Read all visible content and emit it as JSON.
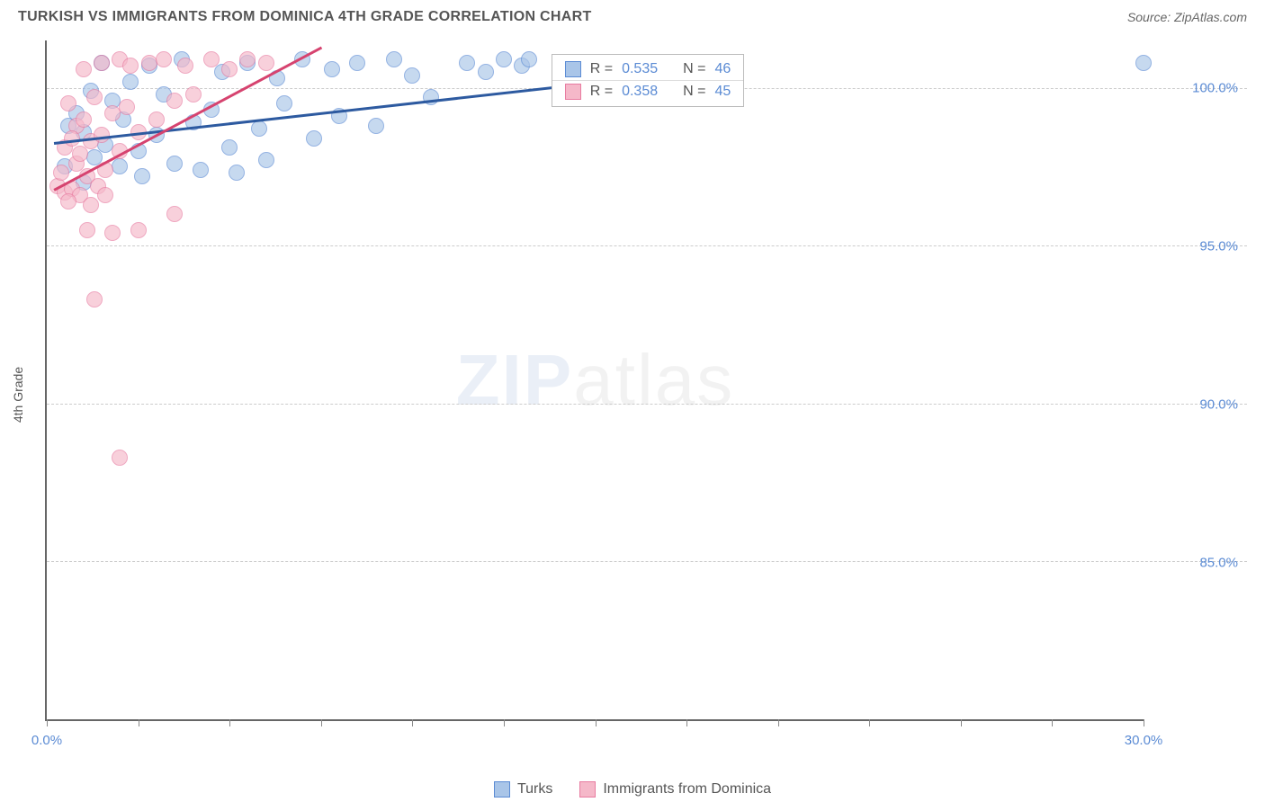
{
  "header": {
    "title": "TURKISH VS IMMIGRANTS FROM DOMINICA 4TH GRADE CORRELATION CHART",
    "source": "Source: ZipAtlas.com"
  },
  "chart": {
    "type": "scatter",
    "ylabel": "4th Grade",
    "xlim": [
      0,
      30
    ],
    "ylim": [
      80,
      101.5
    ],
    "xticks": [
      0,
      2.5,
      5,
      7.5,
      10,
      12.5,
      15,
      17.5,
      20,
      22.5,
      25,
      27.5,
      30
    ],
    "xtick_labels": {
      "0": "0.0%",
      "30": "30.0%"
    },
    "yticks": [
      85,
      90,
      95,
      100
    ],
    "ytick_labels": [
      "85.0%",
      "90.0%",
      "95.0%",
      "100.0%"
    ],
    "background_color": "#ffffff",
    "grid_color": "#cccccc",
    "axis_color": "#666666",
    "tick_color": "#5b8bd4",
    "marker_radius": 9,
    "marker_opacity": 0.65,
    "series": [
      {
        "name": "Turks",
        "fill": "#a9c5e8",
        "stroke": "#5b8bd4",
        "trend": {
          "x1": 0.2,
          "y1": 98.3,
          "x2": 18,
          "y2": 100.6,
          "color": "#2d5aa0"
        },
        "stats": {
          "R": "0.535",
          "N": "46"
        },
        "points": [
          [
            0.5,
            97.5
          ],
          [
            0.6,
            98.8
          ],
          [
            0.8,
            99.2
          ],
          [
            1.0,
            97.0
          ],
          [
            1.0,
            98.6
          ],
          [
            1.2,
            99.9
          ],
          [
            1.3,
            97.8
          ],
          [
            1.5,
            100.8
          ],
          [
            1.6,
            98.2
          ],
          [
            1.8,
            99.6
          ],
          [
            2.0,
            97.5
          ],
          [
            2.1,
            99.0
          ],
          [
            2.3,
            100.2
          ],
          [
            2.5,
            98.0
          ],
          [
            2.6,
            97.2
          ],
          [
            2.8,
            100.7
          ],
          [
            3.0,
            98.5
          ],
          [
            3.2,
            99.8
          ],
          [
            3.5,
            97.6
          ],
          [
            3.7,
            100.9
          ],
          [
            4.0,
            98.9
          ],
          [
            4.2,
            97.4
          ],
          [
            4.5,
            99.3
          ],
          [
            4.8,
            100.5
          ],
          [
            5.0,
            98.1
          ],
          [
            5.2,
            97.3
          ],
          [
            5.5,
            100.8
          ],
          [
            5.8,
            98.7
          ],
          [
            6.0,
            97.7
          ],
          [
            6.3,
            100.3
          ],
          [
            6.5,
            99.5
          ],
          [
            7.0,
            100.9
          ],
          [
            7.3,
            98.4
          ],
          [
            7.8,
            100.6
          ],
          [
            8.0,
            99.1
          ],
          [
            8.5,
            100.8
          ],
          [
            9.0,
            98.8
          ],
          [
            9.5,
            100.9
          ],
          [
            10.0,
            100.4
          ],
          [
            10.5,
            99.7
          ],
          [
            11.5,
            100.8
          ],
          [
            12.0,
            100.5
          ],
          [
            12.5,
            100.9
          ],
          [
            13.0,
            100.7
          ],
          [
            13.2,
            100.9
          ],
          [
            30.0,
            100.8
          ]
        ]
      },
      {
        "name": "Immigrants from Dominica",
        "fill": "#f5b8c9",
        "stroke": "#e87ba0",
        "trend": {
          "x1": 0.2,
          "y1": 96.8,
          "x2": 7.5,
          "y2": 101.3,
          "color": "#d6436f"
        },
        "stats": {
          "R": "0.358",
          "N": "45"
        },
        "points": [
          [
            0.3,
            96.9
          ],
          [
            0.4,
            97.3
          ],
          [
            0.5,
            96.7
          ],
          [
            0.5,
            98.1
          ],
          [
            0.6,
            99.5
          ],
          [
            0.7,
            96.8
          ],
          [
            0.8,
            97.6
          ],
          [
            0.8,
            98.8
          ],
          [
            0.9,
            96.6
          ],
          [
            1.0,
            99.0
          ],
          [
            1.0,
            100.6
          ],
          [
            1.1,
            97.2
          ],
          [
            1.2,
            98.3
          ],
          [
            1.3,
            99.7
          ],
          [
            1.4,
            96.9
          ],
          [
            1.5,
            100.8
          ],
          [
            1.5,
            98.5
          ],
          [
            1.6,
            97.4
          ],
          [
            1.8,
            99.2
          ],
          [
            1.8,
            95.4
          ],
          [
            2.0,
            100.9
          ],
          [
            2.0,
            98.0
          ],
          [
            2.2,
            99.4
          ],
          [
            2.3,
            100.7
          ],
          [
            2.5,
            98.6
          ],
          [
            2.5,
            95.5
          ],
          [
            2.8,
            100.8
          ],
          [
            3.0,
            99.0
          ],
          [
            3.2,
            100.9
          ],
          [
            3.5,
            99.6
          ],
          [
            3.5,
            96.0
          ],
          [
            3.8,
            100.7
          ],
          [
            4.0,
            99.8
          ],
          [
            4.5,
            100.9
          ],
          [
            5.0,
            100.6
          ],
          [
            5.5,
            100.9
          ],
          [
            6.0,
            100.8
          ],
          [
            0.6,
            96.4
          ],
          [
            1.1,
            95.5
          ],
          [
            1.3,
            93.3
          ],
          [
            1.6,
            96.6
          ],
          [
            1.2,
            96.3
          ],
          [
            2.0,
            88.3
          ],
          [
            0.9,
            97.9
          ],
          [
            0.7,
            98.4
          ]
        ]
      }
    ],
    "stats_box": {
      "left_pct": 46,
      "top_pct": 2
    },
    "watermark": {
      "zip": "ZIP",
      "atlas": "atlas"
    }
  },
  "legend": {
    "items": [
      {
        "label": "Turks",
        "fill": "#a9c5e8",
        "stroke": "#5b8bd4"
      },
      {
        "label": "Immigrants from Dominica",
        "fill": "#f5b8c9",
        "stroke": "#e87ba0"
      }
    ]
  }
}
